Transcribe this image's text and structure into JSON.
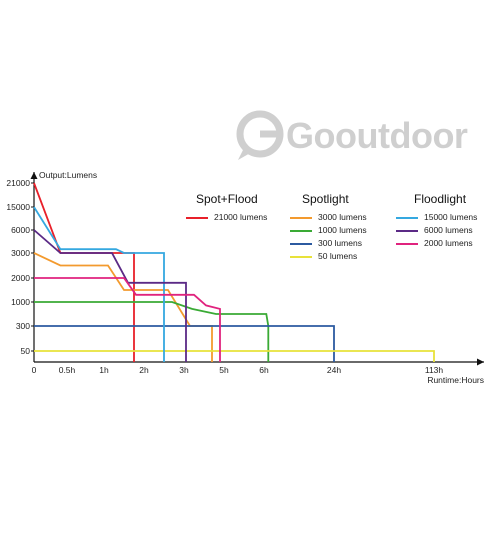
{
  "brand": {
    "logo_text": "Gooutdoor"
  },
  "chart_data": {
    "type": "line",
    "ylabel": "Output:Lumens",
    "xlabel": "Runtime:Hours",
    "y_ticks": [
      "21000",
      "15000",
      "6000",
      "3000",
      "2000",
      "1000",
      "300",
      "50"
    ],
    "x_ticks": [
      "0",
      "0.5h",
      "1h",
      "2h",
      "3h",
      "5h",
      "6h",
      "24h",
      "113h"
    ],
    "x_tick_values": [
      0,
      0.5,
      1,
      2,
      3,
      5,
      6,
      24,
      113
    ],
    "legend_groups": [
      {
        "title": "Spot+Flood",
        "items": [
          {
            "series": 0,
            "label": "21000 lumens"
          }
        ]
      },
      {
        "title": "Spotlight",
        "items": [
          {
            "series": 1,
            "label": "3000 lumens"
          },
          {
            "series": 2,
            "label": "1000 lumens"
          },
          {
            "series": 3,
            "label": "300 lumens"
          },
          {
            "series": 4,
            "label": "50 lumens"
          }
        ]
      },
      {
        "title": "Floodlight",
        "items": [
          {
            "series": 5,
            "label": "15000 lumens"
          },
          {
            "series": 6,
            "label": "6000 lumens"
          },
          {
            "series": 7,
            "label": "2000 lumens"
          }
        ]
      }
    ],
    "series": [
      {
        "name": "21000 lumens",
        "color": "#e8202a",
        "points": [
          [
            0,
            21000
          ],
          [
            0.4,
            3000
          ],
          [
            1.75,
            3000
          ],
          [
            1.75,
            0
          ]
        ]
      },
      {
        "name": "3000 lumens",
        "color": "#f39a2e",
        "points": [
          [
            0,
            3000
          ],
          [
            0.4,
            2500
          ],
          [
            1.1,
            2500
          ],
          [
            1.5,
            1500
          ],
          [
            2.6,
            1500
          ],
          [
            3.3,
            300
          ],
          [
            4.4,
            300
          ],
          [
            4.4,
            0
          ]
        ]
      },
      {
        "name": "1000 lumens",
        "color": "#3aaa35",
        "points": [
          [
            0,
            1000
          ],
          [
            2.7,
            1000
          ],
          [
            3.4,
            800
          ],
          [
            4.6,
            650
          ],
          [
            6.6,
            650
          ],
          [
            7.1,
            300
          ],
          [
            7.1,
            0
          ]
        ]
      },
      {
        "name": "300 lumens",
        "color": "#2c5aa0",
        "points": [
          [
            0,
            300
          ],
          [
            24,
            300
          ],
          [
            24,
            0
          ]
        ]
      },
      {
        "name": "50 lumens",
        "color": "#e8e23a",
        "points": [
          [
            0,
            50
          ],
          [
            113,
            50
          ],
          [
            113,
            0
          ]
        ]
      },
      {
        "name": "15000 lumens",
        "color": "#35a8e0",
        "points": [
          [
            0,
            15000
          ],
          [
            0.4,
            3500
          ],
          [
            1.3,
            3500
          ],
          [
            1.5,
            3000
          ],
          [
            2.5,
            3000
          ],
          [
            2.5,
            0
          ]
        ]
      },
      {
        "name": "6000 lumens",
        "color": "#5b2a86",
        "points": [
          [
            0,
            6000
          ],
          [
            0.4,
            3000
          ],
          [
            1.2,
            3000
          ],
          [
            1.6,
            1800
          ],
          [
            3.1,
            1800
          ],
          [
            3.1,
            0
          ]
        ]
      },
      {
        "name": "2000 lumens",
        "color": "#e0237e",
        "points": [
          [
            0,
            2000
          ],
          [
            1.5,
            2000
          ],
          [
            1.8,
            1300
          ],
          [
            3.5,
            1300
          ],
          [
            4.1,
            900
          ],
          [
            4.8,
            800
          ],
          [
            4.8,
            0
          ]
        ]
      }
    ]
  }
}
